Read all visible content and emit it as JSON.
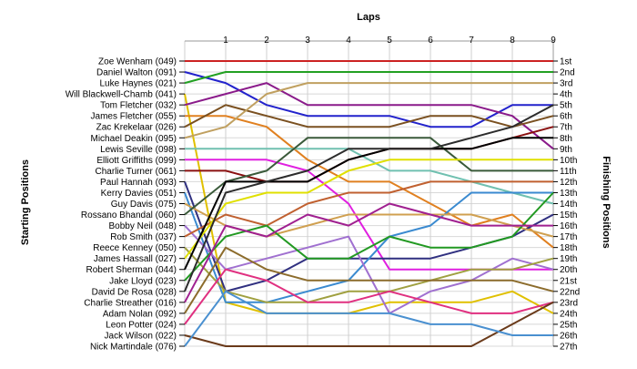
{
  "chart_data": {
    "type": "line",
    "title": "",
    "top_axis_label": "Laps",
    "left_axis_label": "Starting Positions",
    "right_axis_label": "Finishing Positions",
    "x": [
      0,
      1,
      2,
      3,
      4,
      5,
      6,
      7,
      8,
      9
    ],
    "x_tick_labels": [
      "1",
      "2",
      "3",
      "4",
      "5",
      "6",
      "7",
      "8",
      "9"
    ],
    "ylim": [
      1,
      27
    ],
    "y_reversed": true,
    "grid": true,
    "finishing_labels": [
      "1st",
      "2nd",
      "3rd",
      "4th",
      "5th",
      "6th",
      "7th",
      "8th",
      "9th",
      "10th",
      "11th",
      "12th",
      "13th",
      "14th",
      "15th",
      "16th",
      "17th",
      "18th",
      "19th",
      "20th",
      "21st",
      "22nd",
      "23rd",
      "24th",
      "25th",
      "26th",
      "27th"
    ],
    "series": [
      {
        "name": "Zoe Wenham (049)",
        "color": "#cc2222",
        "values": [
          1,
          1,
          1,
          1,
          1,
          1,
          1,
          1,
          1,
          1
        ]
      },
      {
        "name": "Daniel Walton (091)",
        "color": "#2222cc",
        "values": [
          2,
          3,
          5,
          6,
          6,
          6,
          7,
          7,
          5,
          5
        ]
      },
      {
        "name": "Luke Haynes (021)",
        "color": "#22a022",
        "values": [
          3,
          2,
          2,
          2,
          2,
          2,
          2,
          2,
          2,
          2
        ]
      },
      {
        "name": "Will Blackwell-Chamb (041)",
        "color": "#e0c000",
        "values": [
          4,
          23,
          24,
          24,
          24,
          23,
          23,
          23,
          22,
          24
        ]
      },
      {
        "name": "Tom Fletcher (032)",
        "color": "#8a1a8a",
        "values": [
          5,
          4,
          3,
          5,
          5,
          5,
          5,
          5,
          6,
          9
        ]
      },
      {
        "name": "James Fletcher (055)",
        "color": "#e08020",
        "values": [
          6,
          6,
          7,
          10,
          12,
          12,
          14,
          16,
          15,
          18
        ]
      },
      {
        "name": "Zac Krekelaar (026)",
        "color": "#7a5020",
        "values": [
          7,
          5,
          6,
          7,
          7,
          7,
          6,
          6,
          7,
          6
        ]
      },
      {
        "name": "Michael Deakin (095)",
        "color": "#c0a060",
        "values": [
          8,
          7,
          4,
          3,
          3,
          3,
          3,
          3,
          3,
          3
        ]
      },
      {
        "name": "Lewis Seville (098)",
        "color": "#70c0b0",
        "values": [
          9,
          9,
          9,
          9,
          9,
          11,
          11,
          12,
          13,
          14
        ]
      },
      {
        "name": "Elliott Griffiths (099)",
        "color": "#e020e0",
        "values": [
          10,
          10,
          10,
          11,
          14,
          20,
          20,
          20,
          20,
          20
        ]
      },
      {
        "name": "Charlie Turner (061)",
        "color": "#8a1010",
        "values": [
          11,
          11,
          12,
          12,
          10,
          9,
          9,
          9,
          8,
          7
        ]
      },
      {
        "name": "Paul Hannah (093)",
        "color": "#303080",
        "values": [
          12,
          22,
          21,
          19,
          19,
          19,
          19,
          18,
          17,
          15
        ]
      },
      {
        "name": "Kerry Davies (051)",
        "color": "#3a8ad0",
        "values": [
          13,
          23,
          23,
          22,
          21,
          17,
          16,
          13,
          13,
          13
        ]
      },
      {
        "name": "Guy Davis (075)",
        "color": "#d0a050",
        "values": [
          14,
          16,
          17,
          16,
          15,
          15,
          15,
          15,
          16,
          17
        ]
      },
      {
        "name": "Rossano Bhandal (060)",
        "color": "#3a5a3a",
        "values": [
          15,
          12,
          11,
          8,
          8,
          8,
          8,
          11,
          11,
          11
        ]
      },
      {
        "name": "Bobby Neil (048)",
        "color": "#a070d0",
        "values": [
          16,
          20,
          19,
          18,
          17,
          24,
          22,
          21,
          19,
          20
        ]
      },
      {
        "name": "Rob Smith (037)",
        "color": "#c06030",
        "values": [
          17,
          15,
          16,
          14,
          13,
          13,
          12,
          12,
          12,
          12
        ]
      },
      {
        "name": "Reece Kenney (050)",
        "color": "#a0a040",
        "values": [
          18,
          22,
          23,
          23,
          22,
          22,
          21,
          20,
          20,
          19
        ]
      },
      {
        "name": "James Hassall (027)",
        "color": "#e0e000",
        "values": [
          19,
          14,
          13,
          13,
          11,
          10,
          10,
          10,
          10,
          10
        ]
      },
      {
        "name": "Robert Sherman (044)",
        "color": "#000000",
        "values": [
          20,
          12,
          12,
          12,
          10,
          9,
          9,
          9,
          8,
          8
        ]
      },
      {
        "name": "Jake Lloyd (023)",
        "color": "#229922",
        "values": [
          21,
          17,
          16,
          19,
          19,
          17,
          18,
          18,
          17,
          13
        ]
      },
      {
        "name": "David De Rosa (028)",
        "color": "#2c2c2c",
        "values": [
          22,
          13,
          12,
          11,
          9,
          9,
          9,
          8,
          7,
          5
        ]
      },
      {
        "name": "Charlie Streather (016)",
        "color": "#a02090",
        "values": [
          23,
          16,
          17,
          15,
          16,
          14,
          15,
          16,
          16,
          16
        ]
      },
      {
        "name": "Adam Nolan (092)",
        "color": "#8c6c2c",
        "values": [
          24,
          18,
          20,
          21,
          21,
          21,
          21,
          21,
          21,
          22
        ]
      },
      {
        "name": "Leon Potter (024)",
        "color": "#e03080",
        "values": [
          25,
          20,
          21,
          23,
          23,
          22,
          23,
          24,
          24,
          23
        ]
      },
      {
        "name": "Jack Wilson (022)",
        "color": "#6a3a1a",
        "values": [
          26,
          27,
          27,
          27,
          27,
          27,
          27,
          27,
          25,
          23
        ]
      },
      {
        "name": "Nick Martindale (076)",
        "color": "#4a90d0",
        "values": [
          27,
          22,
          24,
          24,
          24,
          24,
          25,
          25,
          26,
          26
        ]
      }
    ]
  }
}
